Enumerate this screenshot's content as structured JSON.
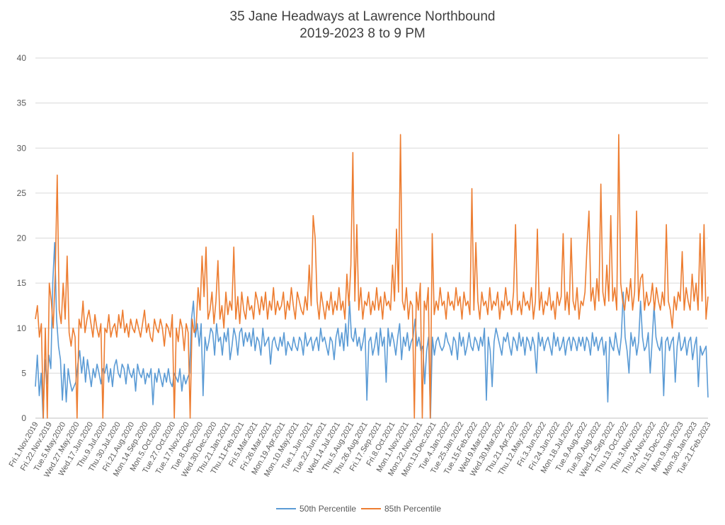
{
  "chart_data": {
    "type": "line",
    "title": "35 Jane Headways at Lawrence Northbound",
    "subtitle": "2019-2023 8 to 9 PM",
    "xlabel": "",
    "ylabel": "",
    "ylim": [
      0,
      40
    ],
    "yticks": [
      0,
      5,
      10,
      15,
      20,
      25,
      30,
      35,
      40
    ],
    "grid": true,
    "legend": "bottom",
    "x_tick_labels": [
      "Fri.1.Nov.2019",
      "Fri.22.Nov.2019",
      "Tue.5.May.2020",
      "Wed.27.May.2020",
      "Wed.17.Jun.2020",
      "Thu.9.Jul.2020",
      "Thu.30.Jul.2020",
      "Fri.21.Aug.2020",
      "Mon.14.Sep.2020",
      "Mon.5.Oct.2020",
      "Tue.27.Oct.2020",
      "Tue.17.Nov.2020",
      "Tue.8.Dec.2020",
      "Wed.30.Dec.2020",
      "Thu.21.Jan.2021",
      "Thu.11.Feb.2021",
      "Fri.5.Mar.2021",
      "Fri.26.Mar.2021",
      "Mon.19.Apr.2021",
      "Mon.10.May.2021",
      "Tue.1.Jun.2021",
      "Tue.22.Jun.2021",
      "Wed.14.Jul.2021",
      "Thu.5.Aug.2021",
      "Thu.26.Aug.2021",
      "Fri.17.Sep.2021",
      "Fri.8.Oct.2021",
      "Mon.1.Nov.2021",
      "Mon.22.Nov.2021",
      "Mon.13.Dec.2021",
      "Tue.4.Jan.2022",
      "Tue.25.Jan.2022",
      "Tue.15.Feb.2022",
      "Wed.9.Mar.2022",
      "Wed.30.Mar.2022",
      "Thu.21.Apr.2022",
      "Thu.12.May.2022",
      "Fri.3.Jun.2022",
      "Fri.24.Jun.2022",
      "Mon.18.Jul.2022",
      "Tue.9.Aug.2022",
      "Tue.30.Aug.2022",
      "Wed.21.Sep.2022",
      "Thu.13.Oct.2022",
      "Thu.3.Nov.2022",
      "Thu.24.Nov.2022",
      "Thu.15.Dec.2022",
      "Mon.9.Jan.2023",
      "Mon.30.Jan.2023",
      "Tue.21.Feb.2023"
    ],
    "series": [
      {
        "name": "50th Percentile",
        "color": "#5B9BD5",
        "values": [
          3.5,
          7.0,
          2.5,
          5.0,
          0.0,
          6.5,
          3.8,
          7.0,
          5.5,
          15.0,
          19.5,
          11.0,
          8.0,
          6.5,
          2.0,
          6.0,
          1.8,
          5.5,
          4.0,
          3.0,
          3.5,
          4.0,
          6.0,
          7.5,
          5.0,
          6.8,
          4.0,
          6.5,
          5.0,
          3.5,
          5.5,
          4.5,
          6.0,
          5.0,
          3.8,
          5.5,
          5.0,
          6.0,
          4.0,
          5.5,
          3.5,
          5.8,
          6.5,
          5.0,
          4.5,
          6.0,
          5.5,
          3.8,
          6.0,
          5.0,
          4.5,
          5.5,
          3.0,
          6.0,
          5.0,
          4.5,
          5.5,
          3.8,
          5.0,
          4.5,
          5.5,
          1.5,
          5.0,
          4.0,
          5.5,
          4.5,
          3.5,
          5.0,
          4.0,
          5.5,
          4.0,
          3.5,
          5.0,
          4.5,
          4.0,
          5.5,
          3.0,
          4.8,
          3.8,
          4.5,
          5.0,
          11.0,
          13.0,
          9.0,
          10.5,
          8.0,
          10.5,
          2.5,
          9.0,
          7.5,
          8.5,
          10.0,
          9.5,
          7.0,
          10.5,
          8.5,
          9.0,
          7.0,
          9.5,
          8.5,
          10.0,
          6.5,
          8.0,
          10.0,
          9.0,
          7.0,
          9.5,
          10.0,
          8.0,
          9.5,
          8.5,
          9.5,
          8.0,
          10.0,
          7.5,
          9.0,
          8.5,
          7.0,
          10.0,
          8.0,
          8.5,
          9.0,
          6.0,
          8.5,
          9.0,
          8.0,
          7.5,
          9.0,
          8.0,
          9.5,
          7.0,
          8.5,
          8.0,
          7.5,
          9.0,
          8.0,
          7.5,
          9.0,
          8.5,
          7.0,
          9.5,
          8.0,
          8.5,
          9.0,
          7.5,
          8.5,
          9.0,
          7.5,
          10.0,
          8.5,
          9.0,
          8.0,
          7.0,
          9.0,
          8.5,
          6.5,
          9.0,
          10.0,
          8.0,
          9.5,
          7.5,
          10.5,
          8.0,
          13.0,
          9.0,
          8.5,
          10.0,
          8.0,
          9.0,
          7.5,
          8.5,
          10.0,
          2.0,
          8.5,
          9.0,
          7.0,
          8.0,
          9.5,
          7.0,
          10.0,
          8.0,
          9.0,
          4.0,
          10.0,
          8.0,
          9.5,
          8.5,
          7.0,
          9.0,
          10.5,
          6.5,
          9.0,
          8.0,
          9.5,
          7.5,
          8.5,
          9.0,
          11.0,
          8.0,
          9.0,
          7.5,
          8.0,
          3.8,
          7.5,
          9.0,
          0.0,
          9.0,
          7.0,
          8.5,
          9.0,
          8.0,
          7.5,
          8.0,
          9.5,
          8.5,
          8.0,
          7.0,
          9.0,
          8.5,
          6.5,
          9.5,
          8.0,
          9.0,
          7.0,
          8.0,
          9.5,
          8.0,
          7.5,
          9.0,
          8.5,
          7.5,
          9.0,
          8.0,
          10.0,
          2.0,
          9.0,
          7.5,
          3.5,
          8.5,
          10.0,
          9.0,
          8.0,
          7.0,
          9.0,
          8.5,
          9.5,
          8.0,
          7.0,
          9.0,
          8.5,
          7.5,
          9.5,
          8.0,
          9.0,
          7.0,
          9.0,
          8.5,
          7.5,
          9.0,
          8.0,
          5.0,
          9.5,
          8.0,
          9.0,
          7.5,
          8.5,
          9.0,
          8.0,
          7.0,
          9.5,
          8.0,
          9.0,
          7.5,
          8.0,
          9.0,
          7.0,
          8.5,
          9.0,
          7.5,
          9.0,
          8.5,
          7.5,
          9.0,
          8.0,
          9.0,
          7.5,
          9.0,
          8.5,
          7.0,
          9.5,
          8.0,
          9.0,
          7.5,
          8.5,
          9.0,
          7.0,
          8.5,
          1.8,
          9.0,
          8.0,
          7.5,
          9.5,
          8.0,
          7.0,
          9.0,
          14.0,
          9.0,
          7.5,
          5.0,
          9.5,
          8.0,
          9.0,
          7.0,
          8.5,
          13.0,
          9.0,
          7.5,
          8.0,
          9.5,
          5.0,
          8.5,
          12.5,
          9.0,
          8.0,
          7.5,
          9.0,
          2.5,
          8.5,
          9.0,
          7.5,
          8.5,
          9.0,
          4.0,
          8.0,
          9.5,
          7.5,
          8.0,
          9.0,
          7.0,
          8.5,
          9.0,
          6.5,
          8.0,
          9.0,
          3.5,
          8.0,
          7.0,
          7.5,
          8.0,
          2.3
        ]
      },
      {
        "name": "85th Percentile",
        "color": "#ED7D31",
        "values": [
          11.0,
          12.5,
          9.0,
          10.5,
          0.0,
          10.0,
          0.0,
          15.0,
          13.0,
          10.0,
          16.0,
          27.0,
          12.0,
          10.5,
          15.0,
          11.0,
          18.0,
          9.5,
          8.0,
          10.0,
          9.0,
          0.0,
          11.0,
          10.0,
          13.0,
          9.5,
          11.0,
          12.0,
          10.5,
          9.0,
          11.5,
          10.0,
          9.0,
          10.5,
          0.0,
          10.0,
          9.5,
          11.5,
          9.0,
          10.0,
          10.5,
          9.0,
          11.5,
          10.0,
          12.0,
          9.5,
          10.5,
          9.0,
          11.0,
          10.0,
          9.5,
          11.0,
          10.0,
          9.0,
          10.5,
          12.0,
          9.5,
          10.5,
          9.0,
          8.5,
          11.0,
          10.0,
          9.5,
          11.0,
          10.0,
          8.0,
          10.5,
          10.0,
          9.0,
          11.5,
          0.0,
          10.0,
          8.5,
          11.0,
          10.0,
          7.5,
          10.5,
          9.5,
          0.0,
          11.0,
          9.5,
          10.0,
          14.5,
          12.0,
          18.0,
          13.5,
          19.0,
          11.0,
          12.0,
          14.0,
          10.5,
          13.0,
          17.5,
          11.0,
          12.5,
          10.0,
          14.0,
          11.5,
          13.0,
          12.0,
          19.0,
          11.0,
          13.5,
          10.5,
          14.0,
          12.0,
          11.0,
          13.5,
          12.0,
          12.5,
          11.0,
          14.0,
          13.0,
          11.5,
          13.5,
          12.0,
          14.0,
          11.0,
          13.0,
          12.0,
          14.5,
          11.5,
          13.0,
          12.0,
          12.5,
          14.0,
          11.0,
          13.0,
          12.0,
          14.5,
          12.5,
          11.0,
          14.0,
          13.0,
          12.0,
          11.5,
          13.5,
          12.0,
          17.0,
          12.5,
          22.5,
          20.0,
          13.0,
          11.0,
          14.0,
          12.5,
          11.0,
          13.0,
          12.0,
          14.0,
          11.5,
          13.0,
          12.0,
          14.5,
          12.0,
          13.0,
          11.0,
          16.0,
          12.5,
          17.0,
          29.5,
          13.0,
          21.5,
          12.0,
          14.5,
          11.0,
          13.0,
          12.5,
          14.0,
          11.5,
          13.0,
          12.0,
          14.5,
          12.0,
          13.5,
          11.0,
          14.0,
          12.5,
          13.0,
          12.0,
          17.0,
          13.0,
          21.0,
          14.0,
          31.5,
          13.0,
          12.0,
          14.5,
          11.0,
          13.0,
          12.5,
          0.0,
          14.0,
          12.0,
          15.0,
          0.0,
          13.0,
          12.0,
          14.5,
          0.0,
          20.5,
          11.5,
          13.0,
          12.0,
          14.5,
          12.5,
          13.0,
          11.0,
          14.0,
          12.5,
          13.0,
          12.0,
          14.5,
          12.5,
          13.5,
          11.0,
          14.0,
          12.5,
          13.0,
          11.5,
          25.5,
          12.0,
          19.5,
          13.0,
          11.0,
          14.0,
          12.5,
          13.0,
          11.5,
          14.5,
          12.0,
          13.0,
          12.5,
          14.0,
          11.0,
          13.0,
          12.0,
          14.5,
          12.5,
          13.0,
          11.5,
          14.0,
          21.5,
          12.0,
          13.0,
          11.5,
          14.0,
          12.5,
          13.0,
          12.0,
          14.5,
          11.0,
          13.0,
          21.0,
          12.0,
          14.0,
          11.5,
          13.0,
          12.5,
          14.5,
          12.0,
          13.0,
          11.0,
          14.0,
          12.5,
          13.5,
          20.5,
          12.0,
          14.0,
          11.5,
          20.0,
          13.0,
          12.0,
          14.5,
          11.0,
          13.0,
          12.5,
          14.0,
          19.0,
          23.0,
          13.0,
          14.5,
          12.0,
          15.5,
          13.0,
          26.0,
          14.0,
          12.5,
          17.0,
          13.0,
          22.5,
          13.0,
          14.5,
          12.0,
          31.5,
          15.0,
          13.0,
          12.0,
          14.5,
          13.0,
          15.5,
          12.0,
          14.0,
          23.0,
          13.0,
          15.5,
          16.0,
          12.0,
          14.0,
          12.5,
          13.0,
          15.0,
          12.0,
          14.5,
          13.0,
          12.0,
          14.0,
          12.5,
          21.5,
          13.0,
          12.0,
          10.0,
          13.5,
          12.0,
          14.0,
          13.0,
          18.5,
          12.0,
          14.5,
          13.0,
          12.0,
          16.0,
          13.0,
          15.0,
          12.0,
          20.5,
          13.0,
          21.5,
          11.0,
          13.5
        ]
      }
    ]
  }
}
